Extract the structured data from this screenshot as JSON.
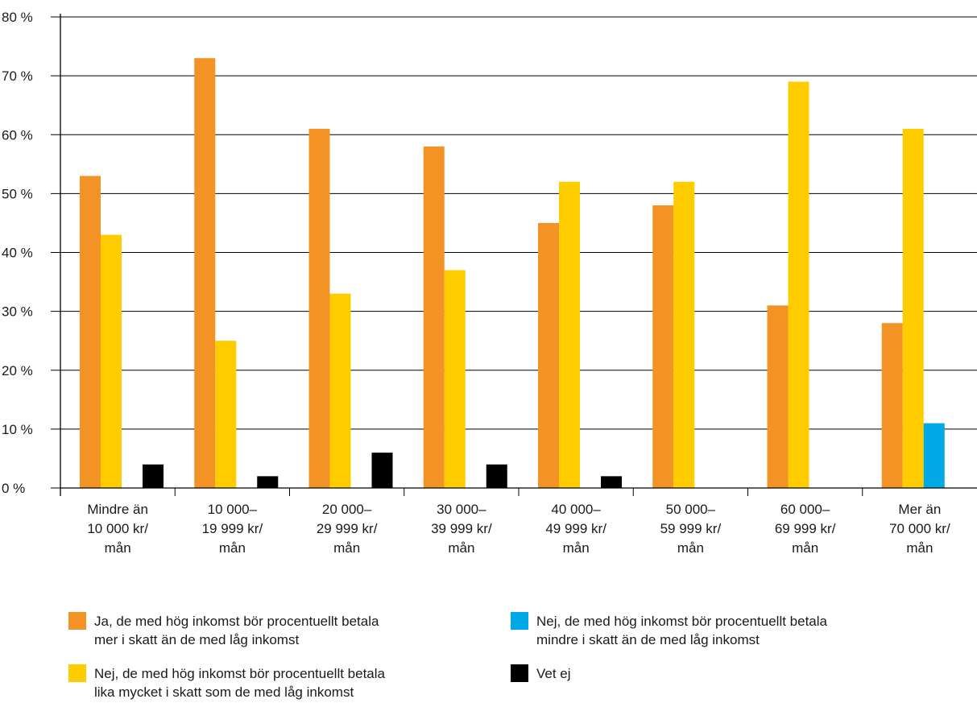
{
  "chart_data": {
    "type": "bar",
    "categories": [
      "Mindre än\n10 000 kr/\nmån",
      "10 000–\n19 999 kr/\nmån",
      "20 000–\n29 999 kr/\nmån",
      "30 000–\n39 999 kr/\nmån",
      "40 000–\n49 999 kr/\nmån",
      "50 000–\n59 999 kr/\nmån",
      "60 000–\n69 999 kr/\nmån",
      "Mer än\n70 000 kr/\nmån"
    ],
    "series": [
      {
        "name": "Ja, de med hög inkomst bör procentuellt betala mer i skatt än de med låg inkomst",
        "color": "#f39325",
        "values": [
          53,
          73,
          61,
          58,
          45,
          48,
          31,
          28
        ]
      },
      {
        "name": "Nej, de med hög inkomst bör procentuellt betala lika mycket i skatt som de med låg inkomst",
        "color": "#ffcc00",
        "values": [
          43,
          25,
          33,
          37,
          52,
          52,
          69,
          61
        ]
      },
      {
        "name": "Nej, de med hög inkomst bör procentuellt betala mindre i skatt än de med låg inkomst",
        "color": "#00a8e6",
        "values": [
          0,
          0,
          0,
          0,
          0,
          0,
          0,
          11
        ]
      },
      {
        "name": "Vet ej",
        "color": "#000000",
        "values": [
          4,
          2,
          6,
          4,
          2,
          0,
          0,
          0
        ]
      }
    ],
    "ylim": [
      0,
      80
    ],
    "yticks": [
      "0 %",
      "10 %",
      "20 %",
      "30 %",
      "40 %",
      "50 %",
      "60 %",
      "70 %",
      "80 %"
    ],
    "grid": true,
    "legend_position": "bottom",
    "legend": [
      {
        "label": "Ja, de med hög inkomst bör procentuellt betala\nmer i skatt än de med låg inkomst",
        "color": "#f39325"
      },
      {
        "label": "Nej, de med hög inkomst bör procentuellt betala\nmindre i skatt än de med låg inkomst",
        "color": "#00a8e6"
      },
      {
        "label": "Nej, de med hög inkomst bör procentuellt betala\nlika mycket i skatt som de med låg inkomst",
        "color": "#ffcc00"
      },
      {
        "label": "Vet ej",
        "color": "#000000"
      }
    ]
  }
}
